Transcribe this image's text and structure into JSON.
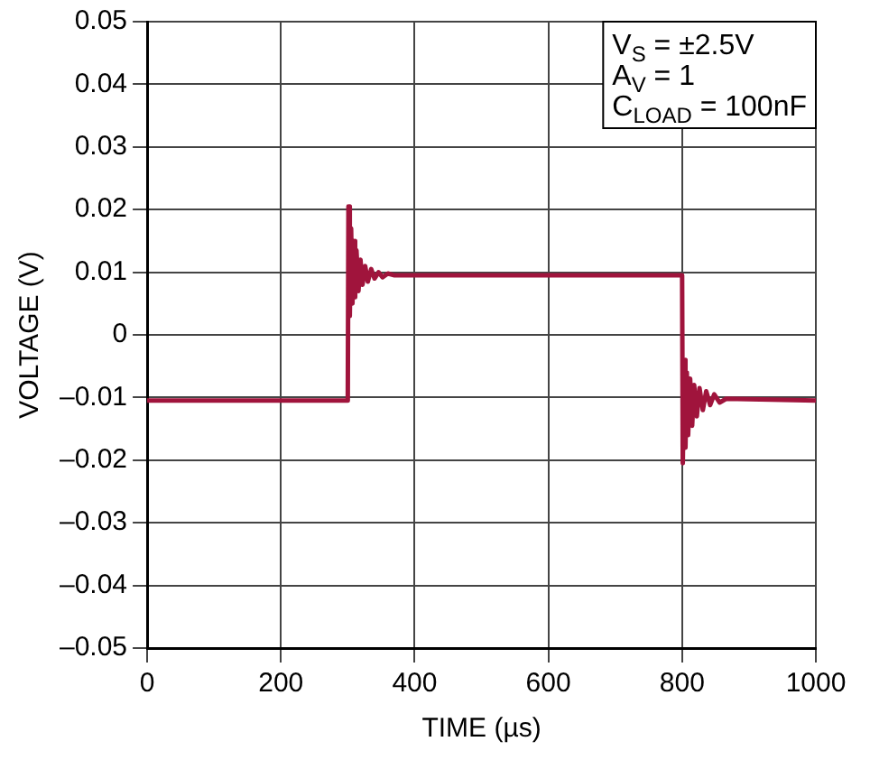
{
  "chart_data": {
    "type": "line",
    "xlabel": "TIME (µs)",
    "ylabel": "VOLTAGE (V)",
    "annotations": [
      "V$_{S}$ = ±2.5V",
      "A$_{V}$ = 1",
      "C$_{LOAD}$ = 100nF"
    ],
    "xlim": [
      0,
      1000
    ],
    "xticks": [
      0,
      200,
      400,
      600,
      800,
      1000
    ],
    "ylim": [
      -0.05,
      0.05
    ],
    "yticks": [
      {
        "value": -0.05,
        "label": "–0.05"
      },
      {
        "value": -0.04,
        "label": "–0.04"
      },
      {
        "value": -0.03,
        "label": "–0.03"
      },
      {
        "value": -0.02,
        "label": "–0.02"
      },
      {
        "value": -0.01,
        "label": "–0.01"
      },
      0,
      0.01,
      0.02,
      0.03,
      0.04,
      0.05
    ],
    "grid": true,
    "marker": "none",
    "line_style": "solid",
    "series": [
      {
        "color": "#a0143c",
        "x": [
          0,
          300,
          301,
          303,
          305,
          307,
          309,
          311,
          313,
          316,
          319,
          322,
          326,
          330,
          335,
          340,
          346,
          352,
          360,
          370,
          800,
          801,
          803,
          805,
          807,
          809,
          812,
          815,
          818,
          822,
          826,
          831,
          836,
          842,
          848,
          856,
          866,
          1000
        ],
        "values": [
          -0.0105,
          -0.0105,
          0.0205,
          0.003,
          0.017,
          0.005,
          0.015,
          0.006,
          0.0135,
          0.007,
          0.012,
          0.008,
          0.011,
          0.0085,
          0.0105,
          0.009,
          0.01,
          0.0092,
          0.0098,
          0.0095,
          0.0095,
          -0.0205,
          -0.004,
          -0.018,
          -0.006,
          -0.016,
          -0.007,
          -0.0145,
          -0.008,
          -0.013,
          -0.0085,
          -0.012,
          -0.009,
          -0.0112,
          -0.0095,
          -0.0108,
          -0.0102,
          -0.0105
        ]
      }
    ]
  }
}
